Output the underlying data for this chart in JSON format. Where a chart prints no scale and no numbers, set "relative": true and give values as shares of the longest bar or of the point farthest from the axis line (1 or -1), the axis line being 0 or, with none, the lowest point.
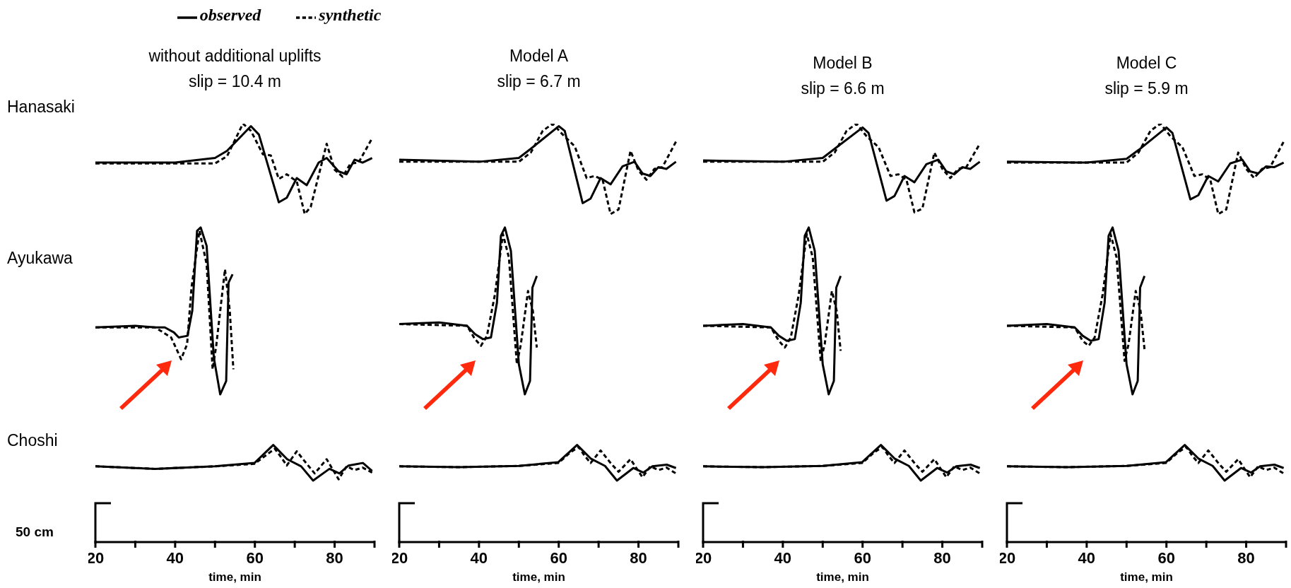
{
  "chart_data": [
    {
      "type": "line",
      "title": "without additional uplifts",
      "subtitle": "slip = 10.4 m",
      "xlabel": "time, min",
      "annotations": [
        "Hanasaki",
        "Ayukawa",
        "Choshi",
        "50 cm"
      ],
      "relative": true,
      "xlim": [
        20,
        90
      ],
      "xticks": [
        20,
        {
          "value": 30,
          "label": null
        },
        40,
        {
          "value": 50,
          "label": null
        },
        60,
        {
          "value": 70,
          "label": null
        },
        80,
        {
          "value": 90,
          "label": null
        }
      ],
      "legend": "top",
      "series": [
        {
          "name": "observed",
          "color": "#000000",
          "line_style": "solid",
          "x": [
            20,
            40,
            50,
            53,
            59,
            61,
            66,
            68,
            70.5,
            73,
            76,
            78,
            81,
            83,
            85,
            87,
            89.4
          ],
          "values": [
            0.907,
            0.907,
            0.918,
            0.935,
            0.994,
            0.974,
            0.812,
            0.823,
            0.87,
            0.853,
            0.907,
            0.918,
            0.886,
            0.879,
            0.914,
            0.907,
            0.918
          ]
        },
        {
          "name": "synthetic",
          "color": "#000000",
          "line_style": "dashed",
          "x": [
            20,
            50,
            53,
            57,
            59,
            62,
            64,
            66,
            68,
            70.5,
            72.5,
            74,
            78,
            80,
            82,
            84,
            86,
            89.4
          ],
          "values": [
            0.905,
            0.905,
            0.922,
            1,
            0.983,
            0.927,
            0.924,
            0.868,
            0.879,
            0.862,
            0.784,
            0.801,
            0.952,
            0.89,
            0.873,
            0.905,
            0.907,
            0.965
          ]
        },
        {
          "color": "#000000",
          "line_style": "solid",
          "x": [
            20,
            30,
            35,
            37.4,
            39.7,
            40.9,
            43.1,
            44.3,
            45.5,
            46.4,
            47.9,
            49.7,
            51.3,
            52.8,
            53.4,
            54.4
          ],
          "values": [
            0.513,
            0.517,
            0.513,
            0.513,
            0.501,
            0.489,
            0.493,
            0.553,
            0.744,
            0.752,
            0.708,
            0.441,
            0.353,
            0.385,
            0.62,
            0.64
          ]
        },
        {
          "color": "#000000",
          "line_style": "dashed",
          "x": [
            20,
            35,
            39,
            41.5,
            43,
            44.1,
            46.1,
            47.9,
            49.4,
            50.3,
            52.5,
            53.7,
            54.6
          ],
          "values": [
            0.513,
            0.513,
            0.489,
            0.437,
            0.473,
            0.608,
            0.744,
            0.664,
            0.413,
            0.469,
            0.652,
            0.553,
            0.413
          ]
        },
        {
          "color": "#000000",
          "line_style": "solid",
          "x": [
            20,
            35,
            50,
            59.9,
            64.6,
            68.1,
            71.6,
            74.6,
            78.7,
            81.2,
            83.5,
            87.1,
            89.4
          ],
          "values": [
            0.181,
            0.175,
            0.181,
            0.189,
            0.232,
            0.198,
            0.181,
            0.147,
            0.175,
            0.164,
            0.183,
            0.189,
            0.17
          ]
        },
        {
          "color": "#000000",
          "line_style": "dashed",
          "x": [
            20,
            35,
            50,
            59.9,
            63,
            65,
            66.5,
            68,
            70.5,
            73,
            75,
            78,
            81,
            83,
            85,
            87,
            89.4
          ],
          "values": [
            0.181,
            0.175,
            0.181,
            0.187,
            0.209,
            0.223,
            0.204,
            0.183,
            0.217,
            0.187,
            0.164,
            0.198,
            0.15,
            0.181,
            0.172,
            0.178,
            0.166
          ]
        }
      ]
    },
    {
      "type": "line",
      "title": "Model A",
      "subtitle": "slip = 6.7 m",
      "xlabel": "time, min",
      "relative": true,
      "xlim": [
        20,
        90
      ],
      "xticks": [
        20,
        {
          "value": 30,
          "label": null
        },
        40,
        {
          "value": 50,
          "label": null
        },
        60,
        {
          "value": 70,
          "label": null
        },
        80,
        {
          "value": 90,
          "label": null
        }
      ],
      "series": [
        {
          "color": "#000000",
          "line_style": "solid",
          "x": [
            20,
            40,
            50,
            53,
            60,
            61.5,
            66,
            68,
            70.5,
            73,
            76,
            79,
            81,
            83,
            85,
            87,
            89.4
          ],
          "values": [
            0.914,
            0.909,
            0.918,
            0.94,
            0.994,
            0.983,
            0.81,
            0.821,
            0.87,
            0.855,
            0.898,
            0.909,
            0.881,
            0.875,
            0.896,
            0.892,
            0.909
          ]
        },
        {
          "color": "#000000",
          "line_style": "dashed",
          "x": [
            20,
            50,
            53,
            56,
            58.5,
            61,
            64,
            67,
            69,
            71,
            73,
            75,
            78,
            80,
            82,
            84,
            86,
            89.4
          ],
          "values": [
            0.909,
            0.909,
            0.931,
            0.983,
            1,
            0.974,
            0.946,
            0.87,
            0.875,
            0.866,
            0.784,
            0.795,
            0.935,
            0.888,
            0.866,
            0.892,
            0.896,
            0.957
          ]
        },
        {
          "color": "#000000",
          "line_style": "solid",
          "x": [
            20,
            30,
            37,
            39,
            41,
            43,
            44.5,
            45.5,
            46.5,
            48,
            50,
            51.5,
            52.8,
            53.4,
            54.5
          ],
          "values": [
            0.521,
            0.525,
            0.517,
            0.497,
            0.485,
            0.489,
            0.572,
            0.732,
            0.752,
            0.696,
            0.425,
            0.353,
            0.385,
            0.608,
            0.636
          ]
        },
        {
          "color": "#000000",
          "line_style": "dashed",
          "x": [
            20,
            37,
            39,
            40.5,
            42,
            44,
            46,
            47.5,
            49.5,
            50.5,
            52.3,
            53.5,
            54.5
          ],
          "values": [
            0.521,
            0.517,
            0.485,
            0.469,
            0.493,
            0.592,
            0.736,
            0.68,
            0.425,
            0.473,
            0.6,
            0.553,
            0.465
          ]
        },
        {
          "color": "#000000",
          "line_style": "solid",
          "x": [
            20,
            35,
            50,
            59.9,
            64.6,
            68.1,
            71.6,
            74.6,
            78.7,
            81.2,
            83.5,
            87.1,
            89.4
          ],
          "values": [
            0.181,
            0.179,
            0.182,
            0.191,
            0.232,
            0.199,
            0.182,
            0.147,
            0.177,
            0.166,
            0.181,
            0.185,
            0.177
          ]
        },
        {
          "color": "#000000",
          "line_style": "dashed",
          "x": [
            20,
            35,
            50,
            59.9,
            63,
            65,
            66.5,
            68,
            70.5,
            73,
            75,
            78,
            81,
            83,
            85,
            87,
            89.4
          ],
          "values": [
            0.181,
            0.179,
            0.182,
            0.189,
            0.215,
            0.227,
            0.206,
            0.189,
            0.219,
            0.189,
            0.168,
            0.198,
            0.155,
            0.181,
            0.172,
            0.178,
            0.164
          ]
        }
      ]
    },
    {
      "type": "line",
      "title": "Model B",
      "subtitle": "slip = 6.6 m",
      "xlabel": "time, min",
      "relative": true,
      "xlim": [
        20,
        90
      ],
      "xticks": [
        20,
        {
          "value": 30,
          "label": null
        },
        40,
        {
          "value": 50,
          "label": null
        },
        60,
        {
          "value": 70,
          "label": null
        },
        80,
        {
          "value": 90,
          "label": null
        }
      ],
      "series": [
        {
          "color": "#000000",
          "line_style": "solid",
          "x": [
            20,
            40,
            50,
            53,
            60,
            61.5,
            66,
            68,
            70.5,
            73,
            76,
            79,
            81,
            83,
            85,
            87,
            89.4
          ],
          "values": [
            0.912,
            0.909,
            0.918,
            0.94,
            0.991,
            0.978,
            0.816,
            0.827,
            0.875,
            0.86,
            0.903,
            0.914,
            0.886,
            0.879,
            0.896,
            0.892,
            0.909
          ]
        },
        {
          "color": "#000000",
          "line_style": "dashed",
          "x": [
            20,
            50,
            53,
            56,
            58.5,
            61,
            64,
            67,
            69,
            71,
            73,
            75,
            78,
            80,
            82,
            84,
            86,
            89.4
          ],
          "values": [
            0.909,
            0.909,
            0.931,
            0.983,
            1,
            0.97,
            0.944,
            0.875,
            0.879,
            0.866,
            0.788,
            0.797,
            0.931,
            0.892,
            0.87,
            0.892,
            0.896,
            0.952
          ]
        },
        {
          "color": "#000000",
          "line_style": "solid",
          "x": [
            20,
            30,
            37,
            39,
            41,
            43,
            44.5,
            45.5,
            46.5,
            48,
            50,
            51.5,
            52.8,
            53.4,
            54.5
          ],
          "values": [
            0.517,
            0.521,
            0.513,
            0.493,
            0.481,
            0.485,
            0.572,
            0.732,
            0.752,
            0.696,
            0.425,
            0.353,
            0.385,
            0.608,
            0.636
          ]
        },
        {
          "color": "#000000",
          "line_style": "dashed",
          "x": [
            20,
            37,
            39,
            40.5,
            42,
            44,
            46,
            47.5,
            49.5,
            50.5,
            52.3,
            53.5,
            54.5
          ],
          "values": [
            0.517,
            0.513,
            0.481,
            0.465,
            0.489,
            0.592,
            0.736,
            0.68,
            0.433,
            0.473,
            0.6,
            0.553,
            0.457
          ]
        },
        {
          "color": "#000000",
          "line_style": "solid",
          "x": [
            20,
            35,
            50,
            59.9,
            64.6,
            68.1,
            71.6,
            74.6,
            78.7,
            81.2,
            83.5,
            87.1,
            89.4
          ],
          "values": [
            0.181,
            0.179,
            0.182,
            0.191,
            0.232,
            0.199,
            0.182,
            0.147,
            0.177,
            0.166,
            0.181,
            0.185,
            0.177
          ]
        },
        {
          "color": "#000000",
          "line_style": "dashed",
          "x": [
            20,
            35,
            50,
            59.9,
            63,
            65,
            66.5,
            68,
            70.5,
            73,
            75,
            78,
            81,
            83,
            85,
            87,
            89.4
          ],
          "values": [
            0.181,
            0.179,
            0.182,
            0.189,
            0.215,
            0.227,
            0.206,
            0.189,
            0.219,
            0.189,
            0.168,
            0.198,
            0.155,
            0.181,
            0.172,
            0.178,
            0.164
          ]
        }
      ]
    },
    {
      "type": "line",
      "title": "Model C",
      "subtitle": "slip = 5.9 m",
      "xlabel": "time, min",
      "relative": true,
      "xlim": [
        20,
        90
      ],
      "xticks": [
        20,
        {
          "value": 30,
          "label": null
        },
        40,
        {
          "value": 50,
          "label": null
        },
        60,
        {
          "value": 70,
          "label": null
        },
        80,
        {
          "value": 90,
          "label": null
        }
      ],
      "series": [
        {
          "color": "#000000",
          "line_style": "solid",
          "x": [
            20,
            40,
            50,
            53,
            60,
            61.5,
            66,
            68,
            70.5,
            73,
            76,
            79,
            81,
            83,
            85,
            87,
            89.4
          ],
          "values": [
            0.909,
            0.907,
            0.916,
            0.937,
            0.991,
            0.978,
            0.819,
            0.829,
            0.875,
            0.862,
            0.905,
            0.914,
            0.886,
            0.881,
            0.898,
            0.896,
            0.907
          ]
        },
        {
          "color": "#000000",
          "line_style": "dashed",
          "x": [
            20,
            50,
            53,
            56,
            58.5,
            61,
            64,
            67,
            69,
            71,
            73,
            75,
            78,
            80,
            82,
            84,
            86,
            89.4
          ],
          "values": [
            0.907,
            0.907,
            0.931,
            0.983,
            1,
            0.97,
            0.944,
            0.875,
            0.879,
            0.866,
            0.784,
            0.795,
            0.931,
            0.892,
            0.87,
            0.892,
            0.896,
            0.957
          ]
        },
        {
          "color": "#000000",
          "line_style": "solid",
          "x": [
            20,
            30,
            37,
            39,
            41,
            43,
            44.5,
            45.5,
            46.5,
            48,
            50,
            51.5,
            52.8,
            53.4,
            54.5
          ],
          "values": [
            0.517,
            0.521,
            0.513,
            0.493,
            0.481,
            0.485,
            0.572,
            0.732,
            0.752,
            0.696,
            0.425,
            0.353,
            0.385,
            0.608,
            0.636
          ]
        },
        {
          "color": "#000000",
          "line_style": "dashed",
          "x": [
            20,
            37,
            39,
            40.5,
            42,
            44,
            46,
            47.5,
            49.5,
            50.5,
            52.3,
            53.5,
            54.5
          ],
          "values": [
            0.517,
            0.513,
            0.481,
            0.469,
            0.489,
            0.592,
            0.736,
            0.68,
            0.433,
            0.473,
            0.6,
            0.553,
            0.461
          ]
        },
        {
          "color": "#000000",
          "line_style": "solid",
          "x": [
            20,
            35,
            50,
            59.9,
            64.6,
            68.1,
            71.6,
            74.6,
            78.7,
            81.2,
            83.5,
            87.1,
            89.4
          ],
          "values": [
            0.181,
            0.179,
            0.182,
            0.191,
            0.232,
            0.199,
            0.182,
            0.147,
            0.177,
            0.166,
            0.181,
            0.185,
            0.177
          ]
        },
        {
          "color": "#000000",
          "line_style": "dashed",
          "x": [
            20,
            35,
            50,
            59.9,
            63,
            65,
            66.5,
            68,
            70.5,
            73,
            75,
            78,
            81,
            83,
            85,
            87,
            89.4
          ],
          "values": [
            0.181,
            0.179,
            0.182,
            0.189,
            0.215,
            0.227,
            0.206,
            0.189,
            0.219,
            0.189,
            0.168,
            0.198,
            0.155,
            0.181,
            0.172,
            0.178,
            0.164
          ]
        }
      ]
    }
  ]
}
